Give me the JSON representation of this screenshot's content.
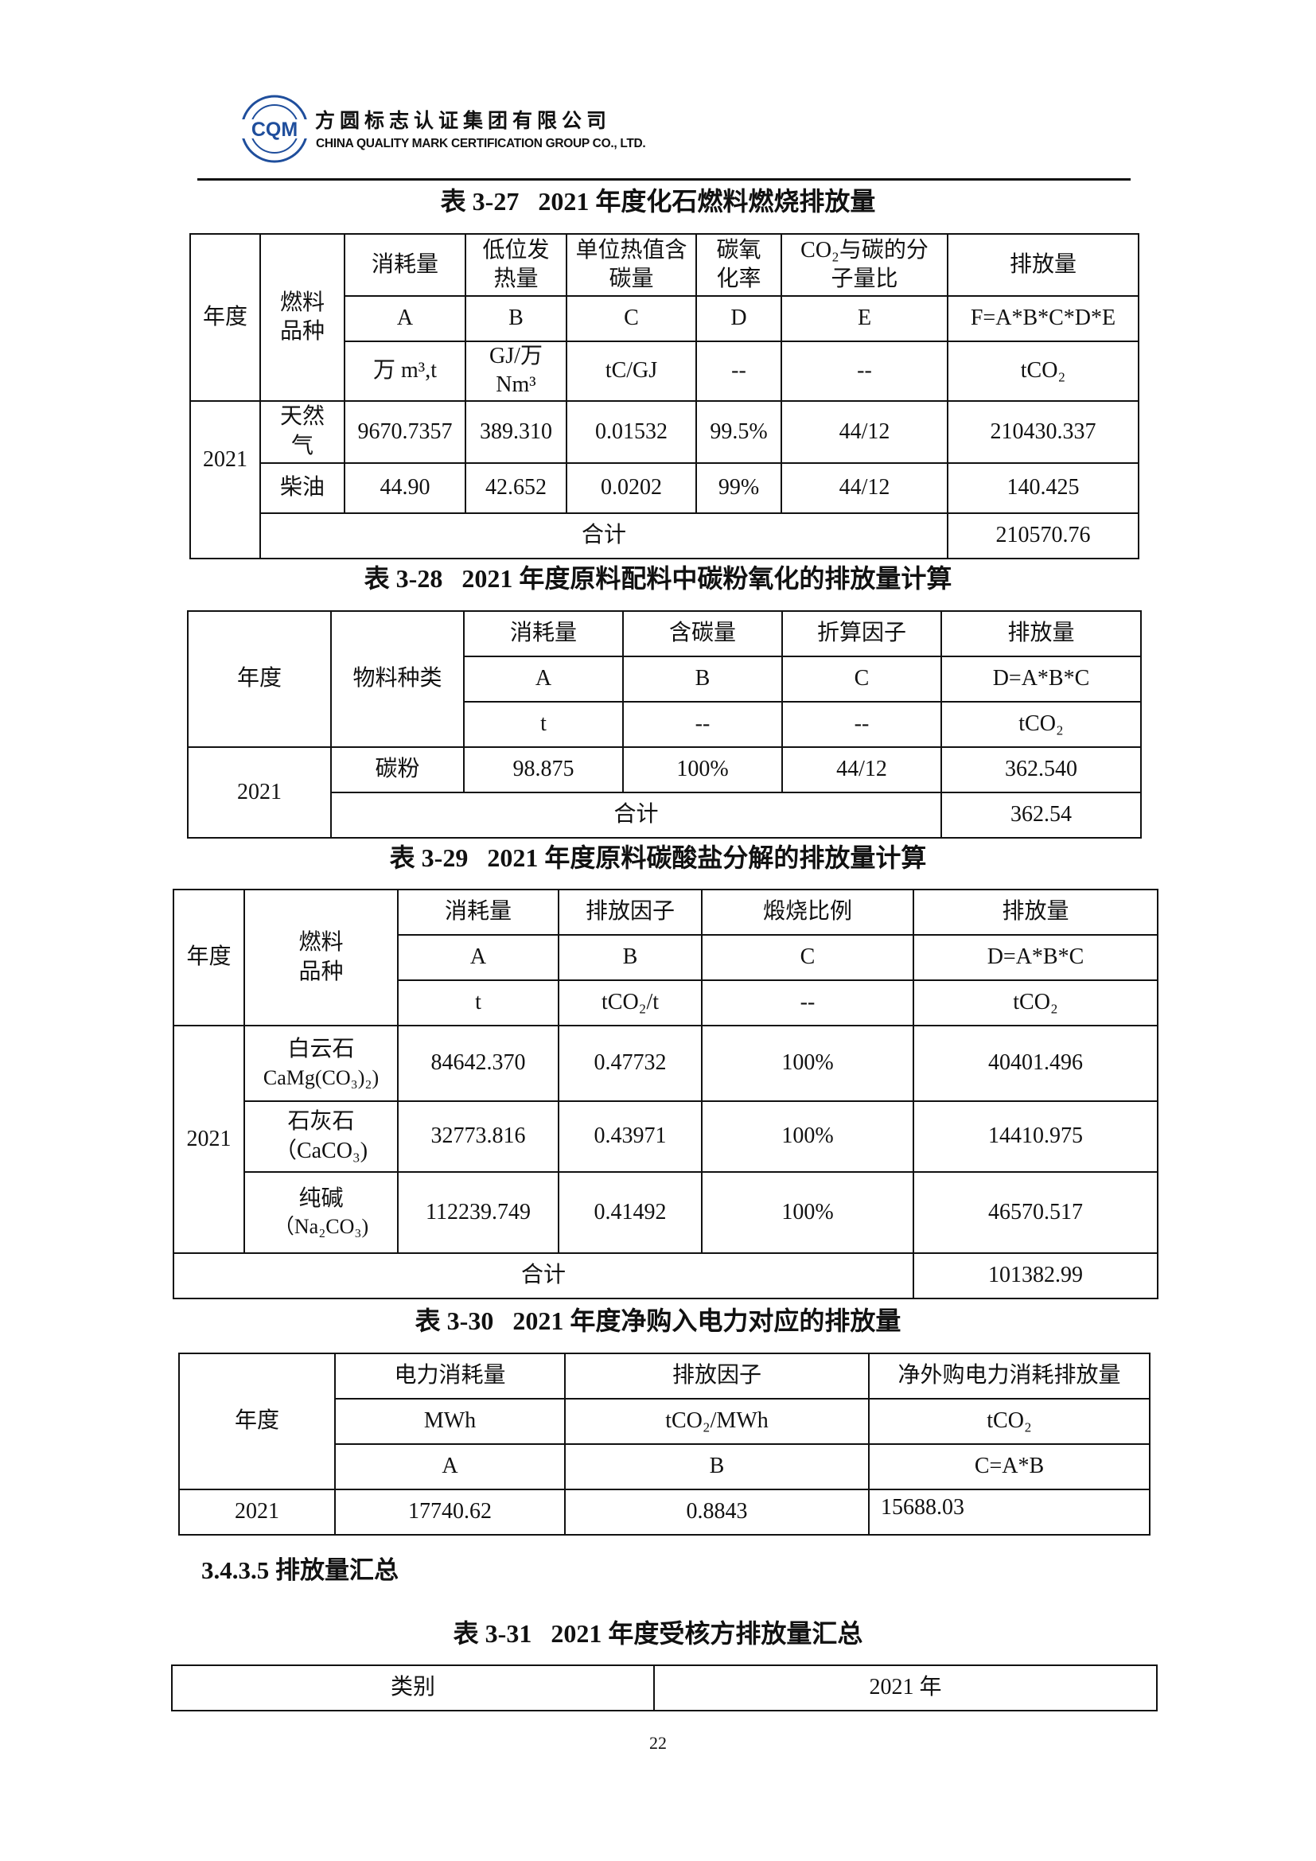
{
  "header": {
    "logo_text": "CQM",
    "company_cn": "方圆标志认证集团有限公司",
    "company_en": "CHINA QUALITY MARK CERTIFICATION GROUP CO., LTD.",
    "brand_color": "#1f4e9c"
  },
  "t327": {
    "title": "表 3-27   2021 年度化石燃料燃烧排放量",
    "h_year": "年度",
    "h_fuel": "燃料品种",
    "cols": [
      "消耗量",
      "低位发热量",
      "单位热值含碳量",
      "碳氧化率",
      "CO₂与碳的分子量比",
      "排放量"
    ],
    "codes": [
      "A",
      "B",
      "C",
      "D",
      "E",
      "F=A*B*C*D*E"
    ],
    "units": [
      "万 m³,t",
      "GJ/万 Nm³",
      "tC/GJ",
      "--",
      "--",
      "tCO₂"
    ],
    "year": "2021",
    "rows": [
      {
        "fuel": "天然气",
        "vals": [
          "9670.7357",
          "389.310",
          "0.01532",
          "99.5%",
          "44/12",
          "210430.337"
        ]
      },
      {
        "fuel": "柴油",
        "vals": [
          "44.90",
          "42.652",
          "0.0202",
          "99%",
          "44/12",
          "140.425"
        ]
      }
    ],
    "total_label": "合计",
    "total": "210570.76"
  },
  "t328": {
    "title": "表 3-28   2021 年度原料配料中碳粉氧化的排放量计算",
    "h_year": "年度",
    "h_mat": "物料种类",
    "cols": [
      "消耗量",
      "含碳量",
      "折算因子",
      "排放量"
    ],
    "codes": [
      "A",
      "B",
      "C",
      "D=A*B*C"
    ],
    "units": [
      "t",
      "--",
      "--",
      "tCO₂"
    ],
    "year": "2021",
    "row": {
      "mat": "碳粉",
      "vals": [
        "98.875",
        "100%",
        "44/12",
        "362.540"
      ]
    },
    "total_label": "合计",
    "total": "362.54"
  },
  "t329": {
    "title": "表 3-29   2021 年度原料碳酸盐分解的排放量计算",
    "h_year": "年度",
    "h_fuel": "燃料品种",
    "cols": [
      "消耗量",
      "排放因子",
      "煅烧比例",
      "排放量"
    ],
    "codes": [
      "A",
      "B",
      "C",
      "D=A*B*C"
    ],
    "units": [
      "t",
      "tCO₂/t",
      "--",
      "tCO₂"
    ],
    "year": "2021",
    "rows": [
      {
        "name": "白云石",
        "formula": "CaMg(CO₃)₂)",
        "vals": [
          "84642.370",
          "0.47732",
          "100%",
          "40401.496"
        ]
      },
      {
        "name": "石灰石",
        "formula": "（CaCO₃)",
        "vals": [
          "32773.816",
          "0.43971",
          "100%",
          "14410.975"
        ]
      },
      {
        "name": "纯碱",
        "formula": "（Na₂CO₃)",
        "vals": [
          "112239.749",
          "0.41492",
          "100%",
          "46570.517"
        ]
      }
    ],
    "total_label": "合计",
    "total": "101382.99"
  },
  "t330": {
    "title": "表 3-30   2021 年度净购入电力对应的排放量",
    "h_year": "年度",
    "cols": [
      "电力消耗量",
      "排放因子",
      "净外购电力消耗排放量"
    ],
    "units": [
      "MWh",
      "tCO₂/MWh",
      "tCO₂"
    ],
    "codes": [
      "A",
      "B",
      "C=A*B"
    ],
    "year": "2021",
    "vals": [
      "17740.62",
      "0.8843",
      "15688.03"
    ]
  },
  "section_heading": "3.4.3.5  排放量汇总",
  "t331": {
    "title": "表 3-31   2021 年度受核方排放量汇总",
    "cols": [
      "类别",
      "2021 年"
    ]
  },
  "page_number": "22"
}
